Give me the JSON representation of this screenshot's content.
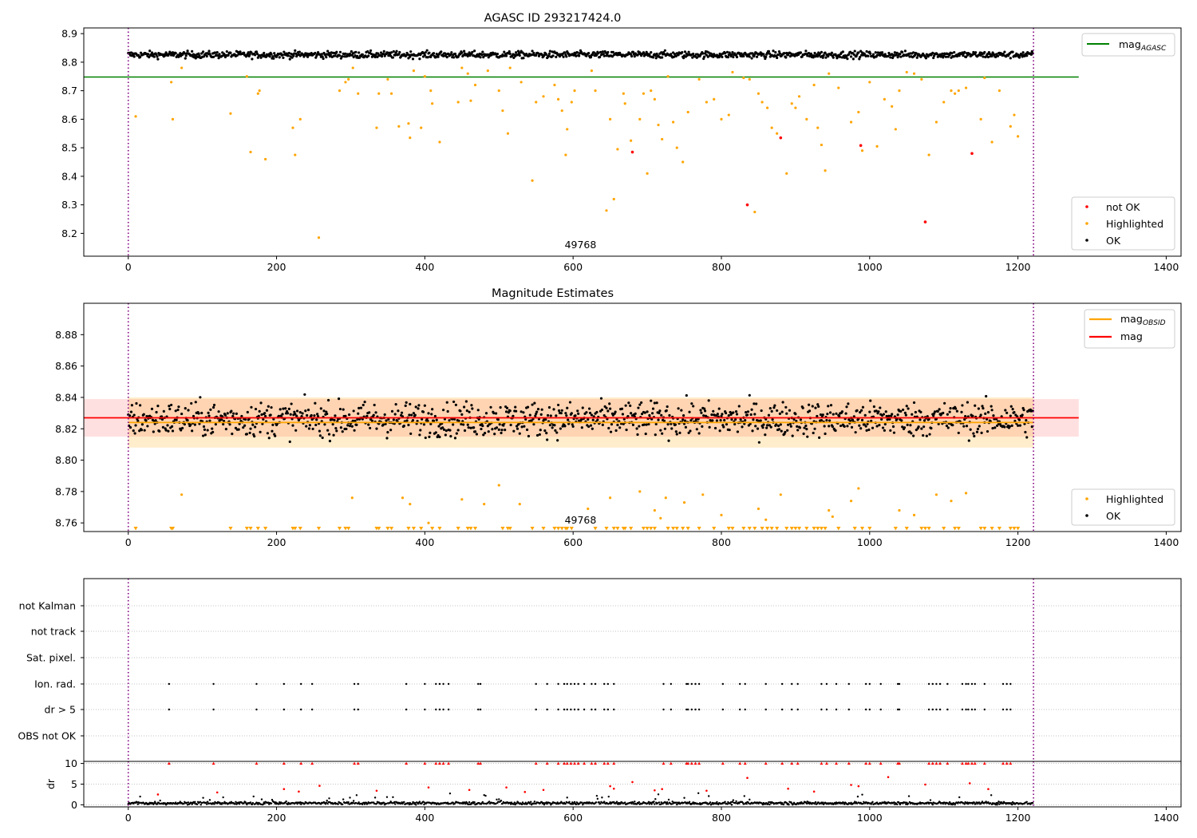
{
  "chart_data": [
    {
      "type": "scatter",
      "title": "AGASC ID 293217424.0",
      "xlim": [
        -60,
        1420
      ],
      "ylim": [
        8.12,
        8.92
      ],
      "xticks": [
        0,
        200,
        400,
        600,
        800,
        1000,
        1200,
        1400
      ],
      "yticks": [
        8.2,
        8.3,
        8.4,
        8.5,
        8.6,
        8.7,
        8.8,
        8.9
      ],
      "ytick_labels": [
        "8.2",
        "8.3",
        "8.4",
        "8.5",
        "8.6",
        "8.7",
        "8.8",
        "8.9"
      ],
      "grid": false,
      "obsid_label": "49768",
      "obsid_label_x": 610,
      "obsid_bounds": [
        0,
        1221
      ],
      "lines": [
        {
          "name": "mag$_{AGASC}$",
          "label_main": "mag",
          "label_sub": "AGASC",
          "y": 8.748,
          "x_range": [
            -60,
            1282
          ],
          "color": "#008000"
        }
      ],
      "series": [
        {
          "name": "not OK",
          "color": "#ff0000",
          "x": [
            680,
            835,
            880,
            988,
            1075,
            1138
          ],
          "y": [
            8.485,
            8.3,
            8.535,
            8.508,
            8.24,
            8.48
          ]
        },
        {
          "name": "Highlighted",
          "color": "#ffa500",
          "x": [
            10,
            58,
            60,
            72,
            138,
            160,
            165,
            175,
            177,
            185,
            222,
            225,
            232,
            257,
            285,
            293,
            297,
            303,
            310,
            335,
            338,
            350,
            355,
            365,
            378,
            380,
            385,
            395,
            400,
            408,
            410,
            420,
            445,
            450,
            458,
            462,
            468,
            485,
            500,
            505,
            512,
            515,
            530,
            545,
            550,
            560,
            575,
            580,
            585,
            590,
            592,
            598,
            602,
            625,
            630,
            645,
            650,
            655,
            660,
            668,
            670,
            678,
            690,
            695,
            700,
            705,
            710,
            715,
            720,
            728,
            735,
            740,
            748,
            755,
            770,
            780,
            790,
            800,
            810,
            815,
            830,
            838,
            845,
            850,
            855,
            862,
            868,
            875,
            888,
            895,
            900,
            905,
            915,
            925,
            930,
            935,
            940,
            945,
            958,
            975,
            985,
            990,
            1000,
            1010,
            1020,
            1030,
            1035,
            1040,
            1050,
            1060,
            1070,
            1080,
            1090,
            1100,
            1110,
            1115,
            1120,
            1130,
            1150,
            1155,
            1165,
            1175,
            1190,
            1195,
            1200
          ],
          "y": [
            8.61,
            8.73,
            8.6,
            8.78,
            8.62,
            8.75,
            8.485,
            8.69,
            8.7,
            8.46,
            8.57,
            8.475,
            8.6,
            8.185,
            8.7,
            8.73,
            8.74,
            8.78,
            8.69,
            8.57,
            8.69,
            8.74,
            8.69,
            8.575,
            8.585,
            8.535,
            8.77,
            8.57,
            8.75,
            8.7,
            8.655,
            8.52,
            8.66,
            8.78,
            8.76,
            8.665,
            8.72,
            8.77,
            8.7,
            8.63,
            8.55,
            8.78,
            8.73,
            8.385,
            8.66,
            8.68,
            8.72,
            8.67,
            8.63,
            8.475,
            8.565,
            8.66,
            8.7,
            8.77,
            8.7,
            8.28,
            8.6,
            8.32,
            8.495,
            8.69,
            8.655,
            8.525,
            8.6,
            8.69,
            8.41,
            8.7,
            8.67,
            8.58,
            8.53,
            8.75,
            8.59,
            8.5,
            8.45,
            8.625,
            8.74,
            8.66,
            8.67,
            8.6,
            8.615,
            8.765,
            8.745,
            8.74,
            8.275,
            8.69,
            8.66,
            8.64,
            8.57,
            8.55,
            8.41,
            8.655,
            8.64,
            8.68,
            8.6,
            8.72,
            8.57,
            8.51,
            8.42,
            8.76,
            8.71,
            8.59,
            8.625,
            8.49,
            8.73,
            8.505,
            8.67,
            8.645,
            8.565,
            8.7,
            8.765,
            8.76,
            8.74,
            8.475,
            8.59,
            8.66,
            8.7,
            8.69,
            8.7,
            8.71,
            8.6,
            8.745,
            8.52,
            8.7,
            8.575,
            8.615,
            8.54
          ]
        },
        {
          "name": "OK",
          "color": "#000000",
          "generated_band": {
            "y_center": 8.826,
            "y_spread": 0.012,
            "n": 1221
          }
        }
      ],
      "legend": {
        "position": "right",
        "entries": [
          "not OK",
          "Highlighted",
          "OK"
        ]
      }
    },
    {
      "type": "scatter",
      "title": "Magnitude Estimates",
      "xlim": [
        -60,
        1420
      ],
      "ylim": [
        8.7545,
        8.9
      ],
      "xticks": [
        0,
        200,
        400,
        600,
        800,
        1000,
        1200,
        1400
      ],
      "yticks": [
        8.76,
        8.78,
        8.8,
        8.82,
        8.84,
        8.86,
        8.88
      ],
      "ytick_labels": [
        "8.76",
        "8.78",
        "8.80",
        "8.82",
        "8.84",
        "8.86",
        "8.88"
      ],
      "grid": false,
      "obsid_label": "49768",
      "obsid_label_x": 610,
      "lines": [
        {
          "name": "mag$_{OBSID}$",
          "label_main": "mag",
          "label_sub": "OBSID",
          "y": 8.824,
          "x_range": [
            0,
            1221
          ],
          "color": "#ffa500",
          "band": [
            8.808,
            8.84
          ]
        },
        {
          "name": "mag",
          "label_main": "mag",
          "label_sub": "",
          "y": 8.827,
          "x_range": [
            -60,
            1282
          ],
          "color": "#ff0000",
          "band": [
            8.815,
            8.839
          ]
        }
      ],
      "series": [
        {
          "name": "Highlighted",
          "color": "#ffa500",
          "x": [
            72,
            302,
            370,
            380,
            405,
            450,
            480,
            500,
            528,
            620,
            650,
            690,
            710,
            718,
            725,
            750,
            775,
            800,
            850,
            860,
            880,
            945,
            950,
            975,
            985,
            1040,
            1060,
            1090,
            1110,
            1130
          ],
          "y": [
            8.778,
            8.776,
            8.776,
            8.772,
            8.76,
            8.775,
            8.772,
            8.784,
            8.772,
            8.769,
            8.776,
            8.78,
            8.768,
            8.763,
            8.776,
            8.773,
            8.778,
            8.765,
            8.769,
            8.762,
            8.778,
            8.768,
            8.764,
            8.774,
            8.782,
            8.768,
            8.765,
            8.778,
            8.774,
            8.779
          ],
          "clipped_markers_x": [
            10,
            58,
            60,
            138,
            160,
            165,
            175,
            185,
            222,
            225,
            232,
            257,
            285,
            293,
            297,
            335,
            338,
            350,
            355,
            378,
            385,
            395,
            410,
            420,
            445,
            458,
            462,
            468,
            505,
            512,
            515,
            545,
            560,
            575,
            580,
            585,
            590,
            592,
            598,
            630,
            645,
            655,
            660,
            668,
            670,
            678,
            695,
            700,
            705,
            710,
            728,
            735,
            740,
            748,
            755,
            770,
            790,
            810,
            815,
            830,
            838,
            845,
            855,
            862,
            868,
            875,
            888,
            895,
            900,
            905,
            915,
            925,
            930,
            935,
            940,
            958,
            980,
            990,
            1000,
            1035,
            1050,
            1070,
            1075,
            1080,
            1100,
            1115,
            1120,
            1150,
            1155,
            1165,
            1175,
            1190,
            1195,
            1200
          ]
        },
        {
          "name": "OK",
          "color": "#000000",
          "generated_band": {
            "y_center": 8.826,
            "y_spread": 0.011,
            "n": 1221
          }
        }
      ],
      "legend": {
        "position": "right",
        "entries": [
          "Highlighted",
          "OK"
        ]
      }
    },
    {
      "type": "scatter",
      "title": "",
      "xlim": [
        -60,
        1420
      ],
      "grid": true,
      "categories": [
        "not Kalman",
        "not track",
        "Sat. pixel.",
        "Ion. rad.",
        "dr > 5",
        "OBS not OK"
      ],
      "flag_x": [
        55,
        115,
        173,
        210,
        233,
        248,
        305,
        310,
        375,
        400,
        415,
        420,
        425,
        432,
        472,
        475,
        550,
        565,
        580,
        588,
        592,
        597,
        602,
        607,
        615,
        625,
        630,
        642,
        647,
        655,
        722,
        732,
        753,
        755,
        760,
        765,
        770,
        802,
        825,
        832,
        860,
        882,
        895,
        903,
        935,
        942,
        955,
        972,
        995,
        1000,
        1015,
        1038,
        1040,
        1080,
        1085,
        1090,
        1095,
        1105,
        1125,
        1130,
        1133,
        1138,
        1142,
        1155,
        1180,
        1185,
        1190
      ],
      "flag_rows": [
        "Ion. rad.",
        "dr > 5"
      ]
    },
    {
      "type": "scatter",
      "title": "",
      "xlim": [
        -60,
        1420
      ],
      "ylim": [
        -0.5,
        10.5
      ],
      "ylabel": "dr",
      "yticks": [
        0,
        5,
        10
      ],
      "ytick_labels": [
        "0",
        "5",
        "10"
      ],
      "xticks": [
        0,
        200,
        400,
        600,
        800,
        1000,
        1200,
        1400
      ],
      "grid": true,
      "clipped_value": 10,
      "outlier_x": [
        40,
        120,
        210,
        230,
        258,
        335,
        405,
        460,
        510,
        535,
        560,
        650,
        655,
        680,
        710,
        720,
        780,
        835,
        890,
        925,
        975,
        985,
        1025,
        1075,
        1135,
        1160
      ],
      "outlier_y": [
        2.5,
        3,
        3.8,
        3.2,
        4.6,
        3.4,
        4.2,
        3.6,
        4.2,
        3.1,
        3.6,
        4.5,
        3.9,
        5.5,
        3.5,
        3.8,
        3.4,
        6.5,
        3.9,
        3.2,
        4.8,
        4.5,
        6.7,
        4.9,
        5.2,
        3.8
      ],
      "ok_band": {
        "y_center": 0.4,
        "y_spread": 0.35,
        "n": 1221
      }
    }
  ]
}
